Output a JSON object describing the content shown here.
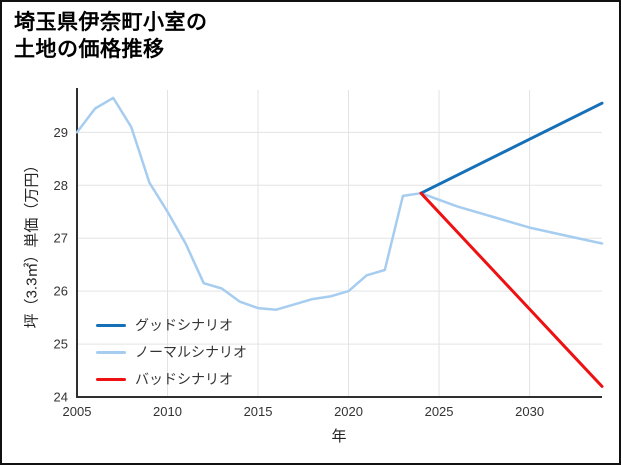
{
  "page": {
    "title_line1": "埼玉県伊奈町小室の",
    "title_line2": "土地の価格推移"
  },
  "chart_data": {
    "type": "line",
    "title": "埼玉県伊奈町小室の土地の価格推移",
    "xlabel": "年",
    "ylabel": "坪（3.3㎡）単価（万円）",
    "xlim": [
      2005,
      2034
    ],
    "ylim": [
      24,
      29.8
    ],
    "xticks": [
      2005,
      2010,
      2015,
      2020,
      2025,
      2030
    ],
    "yticks": [
      24,
      25,
      26,
      27,
      28,
      29
    ],
    "grid": true,
    "legend_position": "lower-left-inside",
    "grid_color": "#e3e3e3",
    "axis_color": "#2f2f2f",
    "series": [
      {
        "name": "グッドシナリオ",
        "color": "#1670b8",
        "width": 3,
        "x": [
          2024,
          2026,
          2028,
          2030,
          2032,
          2034
        ],
        "y": [
          27.85,
          28.19,
          28.53,
          28.87,
          29.21,
          29.55
        ]
      },
      {
        "name": "ノーマルシナリオ",
        "color": "#a6cdf0",
        "width": 2.5,
        "x": [
          2005,
          2006,
          2007,
          2008,
          2009,
          2010,
          2011,
          2012,
          2013,
          2014,
          2015,
          2016,
          2017,
          2018,
          2019,
          2020,
          2021,
          2022,
          2023,
          2024,
          2026,
          2028,
          2030,
          2032,
          2034
        ],
        "y": [
          29.0,
          29.45,
          29.65,
          29.1,
          28.05,
          27.5,
          26.9,
          26.15,
          26.05,
          25.8,
          25.68,
          25.65,
          25.75,
          25.85,
          25.9,
          26.0,
          26.3,
          26.4,
          27.8,
          27.85,
          27.6,
          27.4,
          27.2,
          27.05,
          26.9
        ]
      },
      {
        "name": "バッドシナリオ",
        "color": "#ee1111",
        "width": 3,
        "x": [
          2024,
          2026,
          2028,
          2030,
          2032,
          2034
        ],
        "y": [
          27.85,
          27.12,
          26.39,
          25.66,
          24.93,
          24.2
        ]
      }
    ]
  }
}
